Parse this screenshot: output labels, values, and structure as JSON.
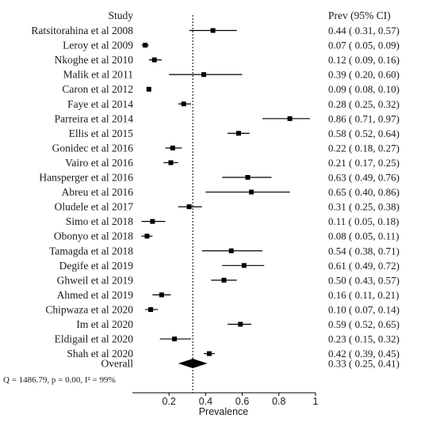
{
  "chart_data": {
    "type": "forest",
    "headers": {
      "study": "Study",
      "prev": "Prev (95% CI)"
    },
    "xlabel": "Prevalence",
    "xlim": [
      0,
      1
    ],
    "xticks": [
      "0.2",
      "0.4",
      "0.6",
      "0.8",
      "1"
    ],
    "reference_line": 0.33,
    "studies": [
      {
        "name": "Ratsitorahina et al 2008",
        "est": 0.44,
        "lo": 0.31,
        "hi": 0.57,
        "label": "0.44  ( 0.31,  0.57)"
      },
      {
        "name": "Leroy et al 2009",
        "est": 0.07,
        "lo": 0.05,
        "hi": 0.09,
        "label": "0.07  ( 0.05,  0.09)"
      },
      {
        "name": "Nkoghe et al 2010",
        "est": 0.12,
        "lo": 0.09,
        "hi": 0.16,
        "label": "0.12  ( 0.09,  0.16)"
      },
      {
        "name": "Malik et al 2011",
        "est": 0.39,
        "lo": 0.2,
        "hi": 0.6,
        "label": "0.39  ( 0.20,  0.60)"
      },
      {
        "name": "Caron et al 2012",
        "est": 0.09,
        "lo": 0.08,
        "hi": 0.1,
        "label": "0.09  ( 0.08,  0.10)"
      },
      {
        "name": "Faye et al 2014",
        "est": 0.28,
        "lo": 0.25,
        "hi": 0.32,
        "label": "0.28  ( 0.25,  0.32)"
      },
      {
        "name": "Parreira et al 2014",
        "est": 0.86,
        "lo": 0.71,
        "hi": 0.97,
        "label": "0.86  ( 0.71,  0.97)"
      },
      {
        "name": "Ellis et al 2015",
        "est": 0.58,
        "lo": 0.52,
        "hi": 0.64,
        "label": "0.58  ( 0.52,  0.64)"
      },
      {
        "name": "Gonidec et al 2016",
        "est": 0.22,
        "lo": 0.18,
        "hi": 0.27,
        "label": "0.22  ( 0.18,  0.27)"
      },
      {
        "name": "Vairo et al 2016",
        "est": 0.21,
        "lo": 0.17,
        "hi": 0.25,
        "label": "0.21  ( 0.17,  0.25)"
      },
      {
        "name": "Hansperger et al 2016",
        "est": 0.63,
        "lo": 0.49,
        "hi": 0.76,
        "label": "0.63  ( 0.49,  0.76)"
      },
      {
        "name": "Abreu et al 2016",
        "est": 0.65,
        "lo": 0.4,
        "hi": 0.86,
        "label": "0.65  ( 0.40,  0.86)"
      },
      {
        "name": "Oludele et al 2017",
        "est": 0.31,
        "lo": 0.25,
        "hi": 0.38,
        "label": "0.31  ( 0.25,  0.38)"
      },
      {
        "name": "Simo et al 2018",
        "est": 0.11,
        "lo": 0.05,
        "hi": 0.18,
        "label": "0.11  ( 0.05,  0.18)"
      },
      {
        "name": "Obonyo et al 2018",
        "est": 0.08,
        "lo": 0.05,
        "hi": 0.11,
        "label": "0.08  ( 0.05,  0.11)"
      },
      {
        "name": "Tamagda et al 2018",
        "est": 0.54,
        "lo": 0.38,
        "hi": 0.71,
        "label": "0.54  ( 0.38,  0.71)"
      },
      {
        "name": "Degife et al 2019",
        "est": 0.61,
        "lo": 0.49,
        "hi": 0.72,
        "label": "0.61  ( 0.49,  0.72)"
      },
      {
        "name": "Ghweil et al 2019",
        "est": 0.5,
        "lo": 0.43,
        "hi": 0.57,
        "label": "0.50  ( 0.43,  0.57)"
      },
      {
        "name": "Ahmed et al 2019",
        "est": 0.16,
        "lo": 0.11,
        "hi": 0.21,
        "label": "0.16  ( 0.11,  0.21)"
      },
      {
        "name": "Chipwaza et al 2020",
        "est": 0.1,
        "lo": 0.07,
        "hi": 0.14,
        "label": "0.10  ( 0.07,  0.14)"
      },
      {
        "name": "Im et al 2020",
        "est": 0.59,
        "lo": 0.52,
        "hi": 0.65,
        "label": "0.59  ( 0.52,  0.65)"
      },
      {
        "name": "Eldigail et al 2020",
        "est": 0.23,
        "lo": 0.15,
        "hi": 0.32,
        "label": "0.23  ( 0.15,  0.32)"
      },
      {
        "name": "Shah et al 2020",
        "est": 0.42,
        "lo": 0.39,
        "hi": 0.45,
        "label": "0.42  ( 0.39,  0.45)"
      }
    ],
    "overall": {
      "name": "Overall",
      "est": 0.33,
      "lo": 0.25,
      "hi": 0.41,
      "label": "0.33  ( 0.25,  0.41)"
    },
    "stats_text": "Q = 1486.79, p = 0.00, I² = 99%",
    "colors": {
      "marker": "#000000",
      "line": "#000000",
      "text": "#1a1a1a"
    }
  }
}
